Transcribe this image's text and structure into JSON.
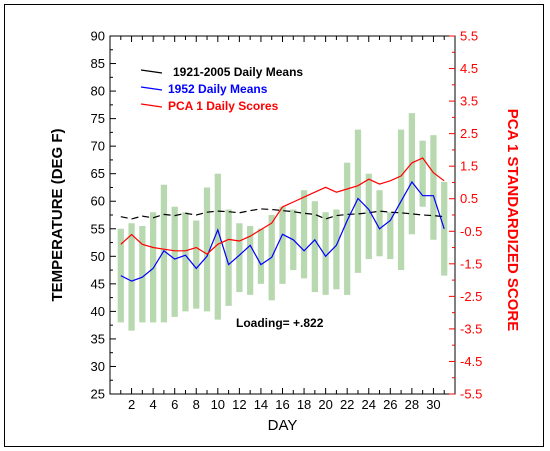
{
  "chart_data": {
    "type": "line",
    "xlabel": "DAY",
    "ylabel": "TEMPERATURE (DEG F)",
    "y2label": "PCA 1 STANDARDIZED SCORE",
    "xlim": [
      0,
      32
    ],
    "ylim": [
      25,
      90
    ],
    "y2lim": [
      -5.5,
      5.5
    ],
    "x_ticks": [
      2,
      4,
      6,
      8,
      10,
      12,
      14,
      16,
      18,
      20,
      22,
      24,
      26,
      28,
      30
    ],
    "y_ticks": [
      25,
      30,
      35,
      40,
      45,
      50,
      55,
      60,
      65,
      70,
      75,
      80,
      85,
      90
    ],
    "y2_ticks": [
      -5.5,
      -4.5,
      -3.5,
      -2.5,
      -1.5,
      -0.5,
      0.5,
      1.5,
      2.5,
      3.5,
      4.5,
      5.5
    ],
    "x": [
      1,
      2,
      3,
      4,
      5,
      6,
      7,
      8,
      9,
      10,
      11,
      12,
      13,
      14,
      15,
      16,
      17,
      18,
      19,
      20,
      21,
      22,
      23,
      24,
      25,
      26,
      27,
      28,
      29,
      30,
      31
    ],
    "series": [
      {
        "name": "1921-2005 Daily Means",
        "axis": "left",
        "color": "#000000",
        "dash": true,
        "values": [
          57.2,
          56.8,
          57.3,
          57.0,
          57.6,
          57.4,
          57.8,
          57.5,
          58.0,
          58.2,
          58.1,
          57.9,
          58.3,
          58.6,
          58.5,
          58.3,
          58.1,
          57.8,
          57.6,
          56.8,
          57.4,
          57.6,
          57.7,
          57.9,
          58.2,
          58.0,
          57.9,
          57.7,
          57.5,
          57.4,
          57.2
        ]
      },
      {
        "name": "1952 Daily Means",
        "axis": "left",
        "color": "#0000ff",
        "dash": false,
        "values": [
          46.5,
          45.5,
          46.2,
          47.8,
          51.0,
          49.5,
          50.2,
          47.8,
          50.0,
          54.8,
          48.5,
          50.2,
          52.0,
          48.5,
          49.8,
          54.0,
          53.0,
          51.0,
          53.0,
          50.0,
          52.0,
          56.5,
          60.5,
          58.5,
          55.0,
          56.5,
          60.0,
          63.5,
          61.0,
          61.0,
          55.0
        ]
      },
      {
        "name": "PCA 1 Daily Scores",
        "axis": "right",
        "color": "#ff0000",
        "dash": false,
        "values": [
          -0.9,
          -0.6,
          -0.9,
          -1.0,
          -1.05,
          -1.1,
          -1.1,
          -1.0,
          -1.2,
          -0.9,
          -0.75,
          -0.8,
          -0.65,
          -0.45,
          -0.25,
          0.25,
          0.4,
          0.55,
          0.7,
          0.85,
          0.7,
          0.8,
          0.9,
          1.1,
          0.95,
          1.05,
          1.2,
          1.6,
          1.75,
          1.3,
          1.05
        ]
      }
    ],
    "bars": {
      "color": "#b8d8b0",
      "low": [
        38,
        36.5,
        38,
        38,
        38,
        39,
        40,
        40.5,
        40,
        38.5,
        41,
        43.5,
        43,
        45,
        42,
        45,
        47.5,
        46,
        43.5,
        43,
        44,
        43,
        47,
        49.5,
        50,
        49.5,
        47.5,
        54,
        59,
        53,
        46.5
      ],
      "high": [
        55,
        56,
        55.5,
        58,
        63,
        59,
        58,
        56.5,
        62.5,
        65,
        58.5,
        56,
        55.5,
        55,
        57.5,
        59,
        58.5,
        62,
        60,
        58,
        58.5,
        67,
        73,
        65,
        62,
        58,
        73,
        76,
        71,
        72,
        63.5
      ]
    },
    "legend_position": "top-left",
    "annotation": "Loading= +.822"
  }
}
